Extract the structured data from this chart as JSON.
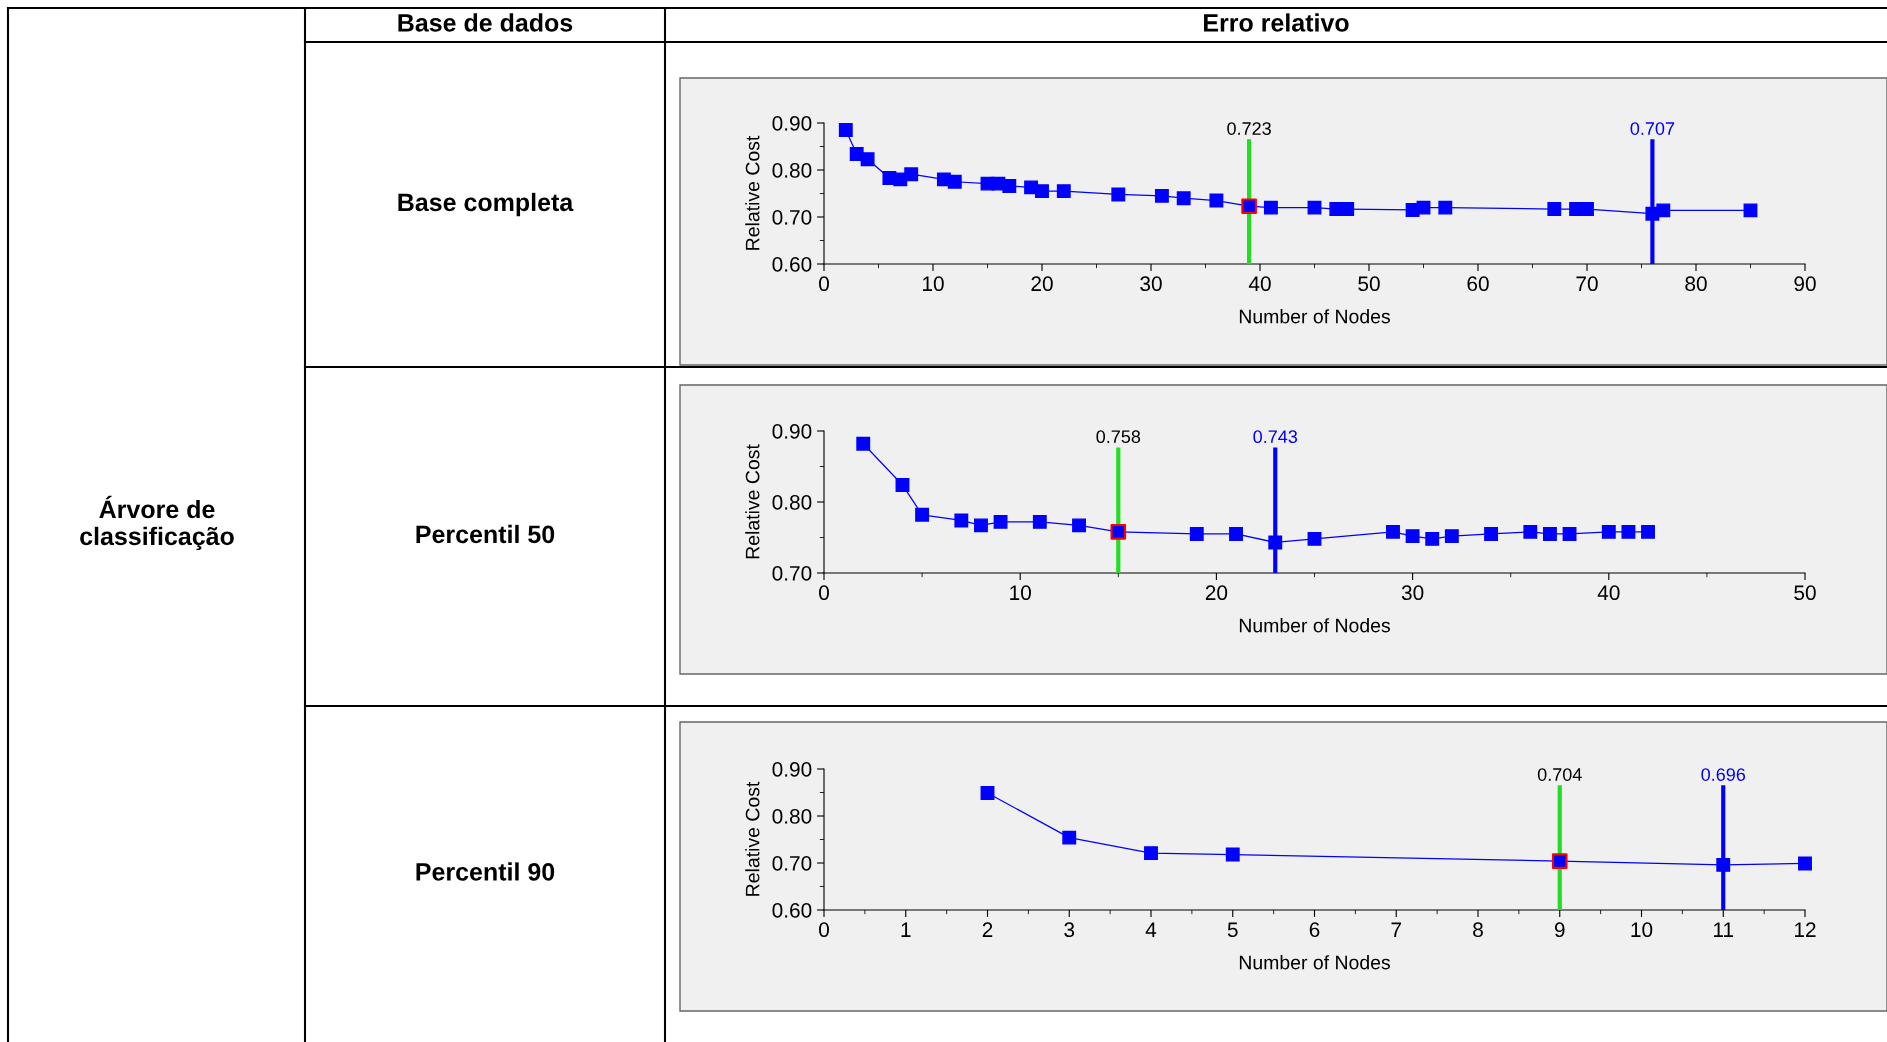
{
  "chart_data": [
    {
      "type": "line",
      "xlabel": "Number of Nodes",
      "ylabel": "Relative Cost",
      "xlim": [
        0,
        90
      ],
      "xticks": [
        0,
        10,
        20,
        30,
        40,
        50,
        60,
        70,
        80,
        90
      ],
      "ylim": [
        0.6,
        0.9
      ],
      "yticks": [
        {
          "value": 0.6,
          "label": "0.60"
        },
        {
          "value": 0.7,
          "label": "0.70"
        },
        {
          "value": 0.8,
          "label": "0.80"
        },
        {
          "value": 0.9,
          "label": "0.90"
        }
      ],
      "marker": "square",
      "grid": false,
      "legend": false,
      "series": [
        {
          "color": "#0000ff",
          "x": [
            2,
            3,
            4,
            6,
            7,
            8,
            11,
            12,
            15,
            16,
            17,
            19,
            20,
            22,
            27,
            31,
            33,
            36,
            39,
            41,
            45,
            47,
            48,
            54,
            55,
            57,
            67,
            69,
            70,
            76,
            77,
            85
          ],
          "values": [
            0.885,
            0.834,
            0.823,
            0.783,
            0.78,
            0.791,
            0.78,
            0.775,
            0.771,
            0.771,
            0.766,
            0.763,
            0.755,
            0.755,
            0.748,
            0.745,
            0.74,
            0.735,
            0.723,
            0.72,
            0.72,
            0.717,
            0.717,
            0.715,
            0.72,
            0.72,
            0.717,
            0.717,
            0.717,
            0.707,
            0.714,
            0.714
          ]
        },
        {
          "type": "scatter",
          "color": "#ff0000",
          "x": [
            39
          ],
          "values": [
            0.723
          ]
        }
      ],
      "ref_lines": [
        {
          "axis": "x",
          "value": 39,
          "color": "#22dd22"
        },
        {
          "axis": "x",
          "value": 76,
          "color": "#0000ff"
        }
      ],
      "annotations": [
        "0.723",
        "0.707"
      ]
    },
    {
      "type": "line",
      "xlabel": "Number of Nodes",
      "ylabel": "Relative Cost",
      "xlim": [
        0,
        50
      ],
      "xticks": [
        0,
        10,
        20,
        30,
        40,
        50
      ],
      "ylim": [
        0.7,
        0.9
      ],
      "yticks": [
        {
          "value": 0.7,
          "label": "0.70"
        },
        {
          "value": 0.8,
          "label": "0.80"
        },
        {
          "value": 0.9,
          "label": "0.90"
        }
      ],
      "marker": "square",
      "grid": false,
      "legend": false,
      "series": [
        {
          "color": "#0000ff",
          "x": [
            2,
            4,
            5,
            7,
            8,
            9,
            11,
            13,
            15,
            19,
            21,
            23,
            25,
            29,
            30,
            31,
            32,
            34,
            36,
            37,
            38,
            40,
            41,
            42
          ],
          "values": [
            0.882,
            0.824,
            0.782,
            0.774,
            0.767,
            0.772,
            0.772,
            0.767,
            0.758,
            0.755,
            0.755,
            0.743,
            0.748,
            0.758,
            0.752,
            0.748,
            0.752,
            0.755,
            0.758,
            0.755,
            0.755,
            0.758,
            0.758,
            0.758
          ]
        },
        {
          "type": "scatter",
          "color": "#ff0000",
          "x": [
            15
          ],
          "values": [
            0.758
          ]
        }
      ],
      "ref_lines": [
        {
          "axis": "x",
          "value": 15,
          "color": "#22dd22"
        },
        {
          "axis": "x",
          "value": 23,
          "color": "#0000ff"
        }
      ],
      "annotations": [
        "0.758",
        "0.743"
      ]
    },
    {
      "type": "line",
      "xlabel": "Number of Nodes",
      "ylabel": "Relative Cost",
      "xlim": [
        0,
        12
      ],
      "xticks": [
        0,
        1,
        2,
        3,
        4,
        5,
        6,
        7,
        8,
        9,
        10,
        11,
        12
      ],
      "ylim": [
        0.6,
        0.9
      ],
      "yticks": [
        {
          "value": 0.6,
          "label": "0.60"
        },
        {
          "value": 0.7,
          "label": "0.70"
        },
        {
          "value": 0.8,
          "label": "0.80"
        },
        {
          "value": 0.9,
          "label": "0.90"
        }
      ],
      "marker": "square",
      "grid": false,
      "legend": false,
      "series": [
        {
          "color": "#0000ff",
          "x": [
            2,
            3,
            4,
            5,
            9,
            11,
            12
          ],
          "values": [
            0.849,
            0.754,
            0.721,
            0.718,
            0.704,
            0.696,
            0.699
          ]
        },
        {
          "type": "scatter",
          "color": "#ff0000",
          "x": [
            9
          ],
          "values": [
            0.704
          ]
        }
      ],
      "ref_lines": [
        {
          "axis": "x",
          "value": 9,
          "color": "#22dd22"
        },
        {
          "axis": "x",
          "value": 11,
          "color": "#0000ff"
        }
      ],
      "annotations": [
        "0.704",
        "0.696"
      ]
    },
    {
      "type": "other",
      "annotations": [
        "Árvore de classificação",
        "Base de dados",
        "Erro relativo",
        "Base completa",
        "Percentil 50",
        "Percentil 90"
      ]
    }
  ]
}
